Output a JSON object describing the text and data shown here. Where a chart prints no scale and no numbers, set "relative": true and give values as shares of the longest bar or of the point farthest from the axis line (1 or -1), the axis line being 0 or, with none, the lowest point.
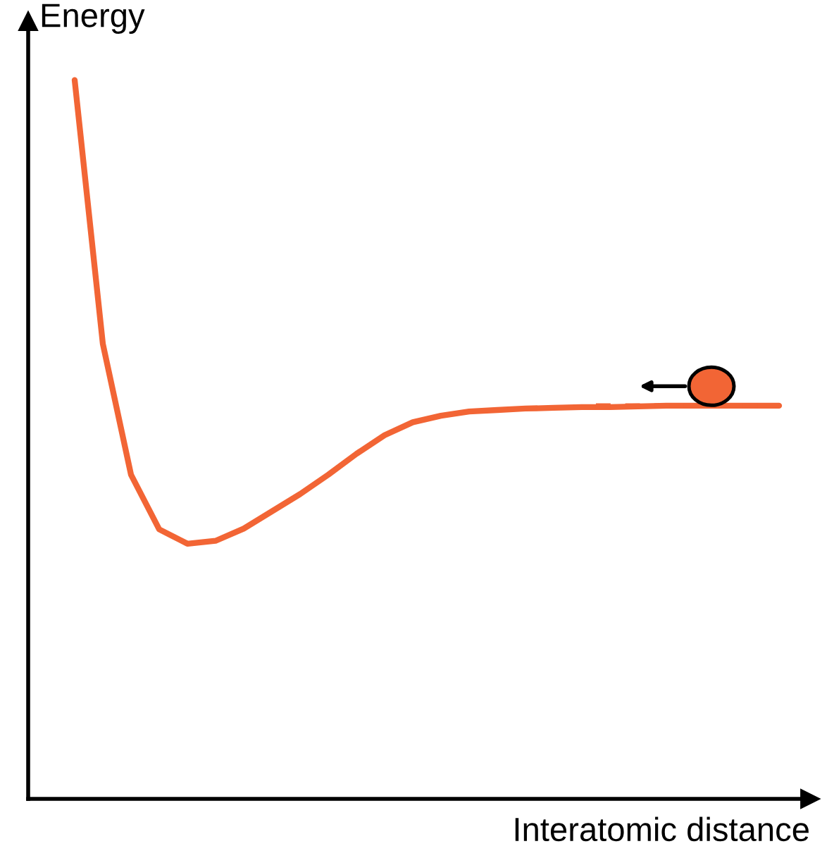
{
  "chart_data": {
    "type": "line",
    "relative": true,
    "xlabel": "Interatomic distance",
    "ylabel": "Energy",
    "grid": false,
    "marker": "none",
    "categories": [
      null,
      null,
      null,
      null,
      null,
      null,
      null,
      null,
      null,
      null,
      null,
      null,
      null,
      null,
      null,
      null,
      null,
      null,
      null,
      null,
      null,
      null,
      null,
      null,
      null,
      null
    ],
    "series": [
      {
        "color": "#f26535",
        "values": [
          1.0,
          0.633,
          0.451,
          0.375,
          0.355,
          0.359,
          0.376,
          0.4,
          0.424,
          0.451,
          0.48,
          0.506,
          0.524,
          0.533,
          0.539,
          0.541,
          0.543,
          0.544,
          0.545,
          0.545,
          0.546,
          0.547,
          0.547,
          0.547,
          0.547,
          0.547
        ]
      }
    ]
  }
}
